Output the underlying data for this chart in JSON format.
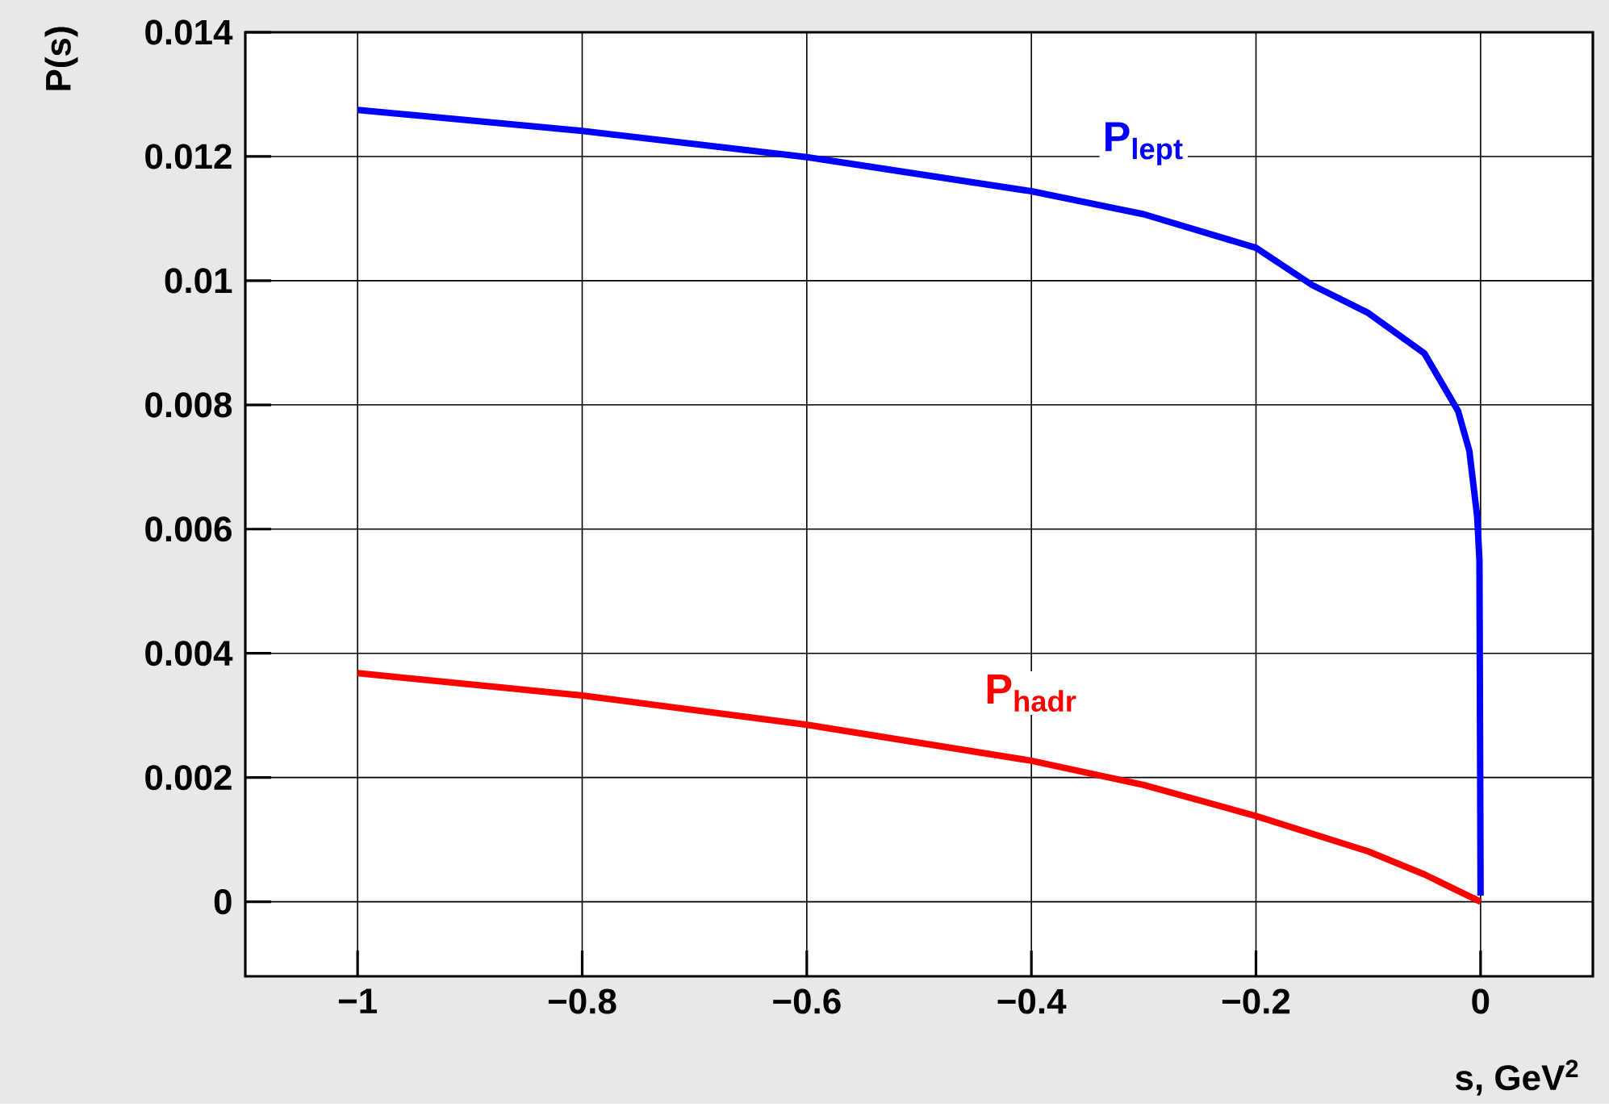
{
  "chart_data": {
    "type": "line",
    "xlabel": "s, GeV$^{2}$",
    "ylabel": "P(s)",
    "xlim": [
      -1.1,
      0.1
    ],
    "ylim": [
      -0.0012,
      0.014
    ],
    "xticks": [
      {
        "value": -1,
        "label": "−1"
      },
      {
        "value": -0.8,
        "label": "−0.8"
      },
      {
        "value": -0.6,
        "label": "−0.6"
      },
      {
        "value": -0.4,
        "label": "−0.4"
      },
      {
        "value": -0.2,
        "label": "−0.2"
      },
      0
    ],
    "yticks": [
      0,
      0.002,
      0.004,
      0.006,
      0.008,
      0.01,
      0.012,
      0.014
    ],
    "grid": true,
    "marker": "none",
    "line_style": "solid",
    "series": [
      {
        "name": "P$_{lept}$",
        "color": "#0000ff",
        "x": [
          -1,
          -0.8,
          -0.6,
          -0.4,
          -0.3,
          -0.2,
          -0.15,
          -0.1,
          -0.05,
          -0.02,
          -0.01,
          -0.003,
          -0.001,
          0
        ],
        "values": [
          0.01275,
          0.01241,
          0.01199,
          0.01144,
          0.01107,
          0.01053,
          0.00993,
          0.00948,
          0.00883,
          0.0079,
          0.00726,
          0.0062,
          0.0055,
          0.0001
        ]
      },
      {
        "name": "P$_{hadr}$",
        "color": "#ff0000",
        "x": [
          -1,
          -0.8,
          -0.6,
          -0.4,
          -0.3,
          -0.2,
          -0.1,
          -0.05,
          0
        ],
        "values": [
          0.00368,
          0.00332,
          0.00285,
          0.00227,
          0.00188,
          0.00138,
          0.00081,
          0.00044,
          0
        ]
      }
    ]
  }
}
